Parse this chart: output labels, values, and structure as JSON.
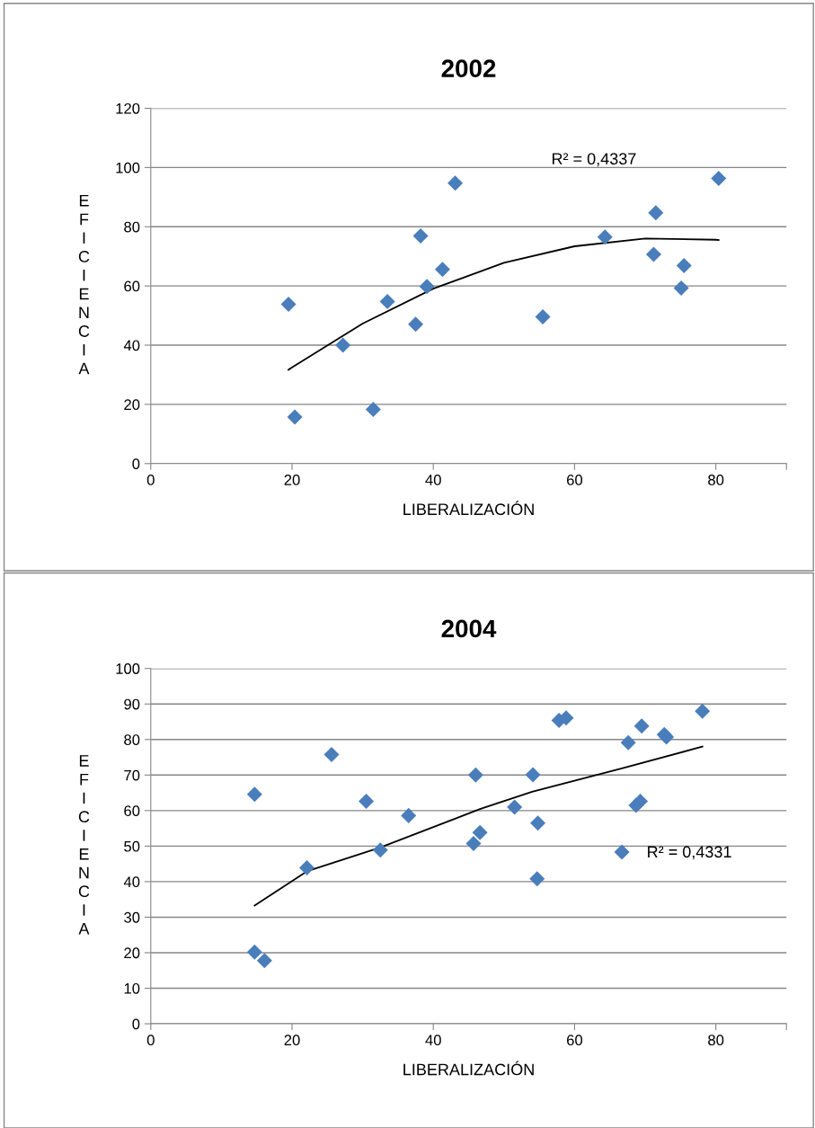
{
  "chart_data": [
    {
      "type": "scatter",
      "title": "2002",
      "xlabel": "LIBERALIZACIÓN",
      "ylabel": "EFICIENCIA",
      "xlim": [
        0,
        90
      ],
      "xticks": [
        0,
        20,
        40,
        60,
        80,
        {
          "value": 90,
          "label": null
        }
      ],
      "ylim": [
        0,
        120
      ],
      "yticks": [
        0,
        20,
        40,
        60,
        80,
        100,
        120
      ],
      "grid": "y",
      "legend": false,
      "marker": "diamond",
      "annotations": [
        "R² = 0,4337"
      ],
      "series": [
        {
          "color": "#4a7ebb",
          "x": [
            19.5,
            20.4,
            27.2,
            31.5,
            33.5,
            37.5,
            38.2,
            39.1,
            41.3,
            43.1,
            55.5,
            64.3,
            71.2,
            71.5,
            75.1,
            75.5,
            80.4
          ],
          "values": [
            53.8,
            15.7,
            40,
            18.3,
            54.7,
            47.1,
            76.9,
            59.8,
            65.6,
            94.7,
            49.6,
            76.5,
            70.7,
            84.7,
            59.3,
            66.9,
            96.3
          ]
        },
        {
          "type": "line",
          "color": "#000000",
          "marker": "none",
          "x": [
            19.5,
            20,
            30,
            40,
            50,
            60,
            70,
            80,
            80.4
          ],
          "values": [
            31.7,
            32.5,
            47.3,
            59.1,
            67.8,
            73.4,
            76.0,
            75.6,
            75.5
          ]
        }
      ]
    },
    {
      "type": "scatter",
      "title": "2004",
      "xlabel": "LIBERALIZACIÓN",
      "ylabel": "EFICIENCIA",
      "xlim": [
        0,
        90
      ],
      "xticks": [
        0,
        20,
        40,
        60,
        80,
        {
          "value": 90,
          "label": null
        }
      ],
      "ylim": [
        0,
        100
      ],
      "yticks": [
        0,
        10,
        20,
        30,
        40,
        50,
        60,
        70,
        80,
        90,
        100
      ],
      "grid": "y",
      "legend": false,
      "marker": "diamond",
      "annotations": [
        "R² = 0,4331"
      ],
      "series": [
        {
          "color": "#4a7ebb",
          "x": [
            14.7,
            14.7,
            16.1,
            22.1,
            25.6,
            30.5,
            32.5,
            36.5,
            45.7,
            46.0,
            46.6,
            51.5,
            54.1,
            54.8,
            54.7,
            57.8,
            58.8,
            66.7,
            67.6,
            68.7,
            69.3,
            69.5,
            72.7,
            73.0,
            78.1
          ],
          "values": [
            64.6,
            20.2,
            17.8,
            43.9,
            75.8,
            62.6,
            48.9,
            58.6,
            50.7,
            70.0,
            53.8,
            61.0,
            70.1,
            56.5,
            40.8,
            85.4,
            86.1,
            48.3,
            79.1,
            61.5,
            62.6,
            83.8,
            81.4,
            80.7,
            88.0
          ]
        },
        {
          "type": "line",
          "color": "#000000",
          "marker": "none",
          "x": [
            14.7,
            22.1,
            32.5,
            46.7,
            54.0,
            66.7,
            78.1
          ],
          "values": [
            33.3,
            42.9,
            49.6,
            60.5,
            65.3,
            71.9,
            78.0
          ]
        }
      ]
    }
  ]
}
